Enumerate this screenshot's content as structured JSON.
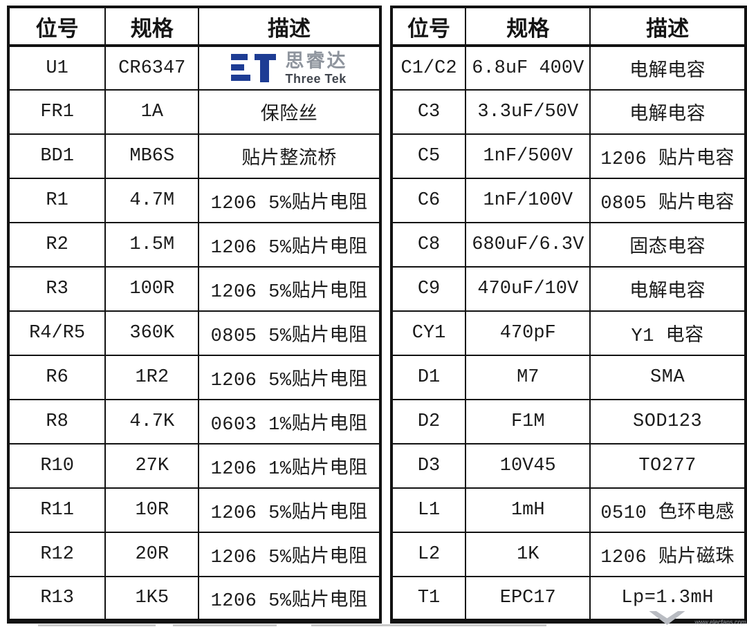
{
  "tables": [
    {
      "side": "left",
      "headers": [
        "位号",
        "规格",
        "描述"
      ],
      "rows": [
        [
          "U1",
          "CR6347",
          "@logo"
        ],
        [
          "FR1",
          "1A",
          "保险丝"
        ],
        [
          "BD1",
          "MB6S",
          "贴片整流桥"
        ],
        [
          "R1",
          "4.7M",
          "1206 5%贴片电阻"
        ],
        [
          "R2",
          "1.5M",
          "1206 5%贴片电阻"
        ],
        [
          "R3",
          "100R",
          "1206 5%贴片电阻"
        ],
        [
          "R4/R5",
          "360K",
          "0805 5%贴片电阻"
        ],
        [
          "R6",
          "1R2",
          "1206 5%贴片电阻"
        ],
        [
          "R8",
          "4.7K",
          "0603 1%贴片电阻"
        ],
        [
          "R10",
          "27K",
          "1206 1%贴片电阻"
        ],
        [
          "R11",
          "10R",
          "1206 5%贴片电阻"
        ],
        [
          "R12",
          "20R",
          "1206 5%贴片电阻"
        ],
        [
          "R13",
          "1K5",
          "1206 5%贴片电阻"
        ]
      ]
    },
    {
      "side": "right",
      "headers": [
        "位号",
        "规格",
        "描述"
      ],
      "rows": [
        [
          "C1/C2",
          "6.8uF 400V",
          "电解电容"
        ],
        [
          "C3",
          "3.3uF/50V",
          "电解电容"
        ],
        [
          "C5",
          "1nF/500V",
          "1206 贴片电容"
        ],
        [
          "C6",
          "1nF/100V",
          "0805 贴片电容"
        ],
        [
          "C8",
          "680uF/6.3V",
          "固态电容"
        ],
        [
          "C9",
          "470uF/10V",
          "电解电容"
        ],
        [
          "CY1",
          "470pF",
          "Y1 电容"
        ],
        [
          "D1",
          "M7",
          "SMA"
        ],
        [
          "D2",
          "F1M",
          "SOD123"
        ],
        [
          "D3",
          "10V45",
          "TO277"
        ],
        [
          "L1",
          "1mH",
          "0510 色环电感"
        ],
        [
          "L2",
          "1K",
          "1206 贴片磁珠"
        ],
        [
          "T1",
          "EPC17",
          "Lp=1.3mH"
        ]
      ]
    }
  ],
  "logo": {
    "name_cn": "思睿达",
    "name_en": "Three Tek",
    "brand_color": "#1d3c94"
  },
  "watermark": {
    "url": "www.elecfans.com"
  },
  "colors": {
    "table_border": "#121212",
    "text": "#1b1b1b",
    "logo_cn_gray": "#8e949d",
    "watermark_gray": "#979ba1"
  }
}
